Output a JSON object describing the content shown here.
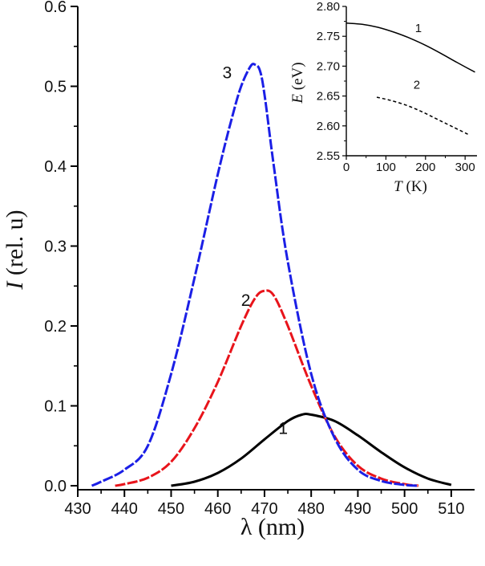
{
  "chart_data": [
    {
      "id": "main",
      "type": "line",
      "xlabel": {
        "symbol": "λ",
        "unit": " (nm)"
      },
      "ylabel": {
        "symbol": "I",
        "unit": " (rel. u)"
      },
      "xlim": [
        430,
        515
      ],
      "ylim": [
        -0.005,
        0.6
      ],
      "xticks": [
        430,
        440,
        450,
        460,
        470,
        480,
        490,
        500,
        510
      ],
      "yticks": [
        0.0,
        0.1,
        0.2,
        0.3,
        0.4,
        0.5,
        0.6
      ],
      "ytick_labels": [
        "0.0",
        "0.1",
        "0.2",
        "0.3",
        "0.4",
        "0.5",
        "0.6"
      ],
      "series": [
        {
          "name": "1",
          "color": "#000000",
          "style": "solid",
          "x": [
            450,
            455,
            460,
            465,
            470,
            475,
            478,
            480,
            485,
            490,
            495,
            500,
            505,
            510
          ],
          "y": [
            0.0,
            0.005,
            0.016,
            0.034,
            0.058,
            0.081,
            0.089,
            0.089,
            0.081,
            0.063,
            0.042,
            0.023,
            0.009,
            0.001
          ],
          "label_at": [
            474,
            0.065
          ]
        },
        {
          "name": "2",
          "color": "#e8141b",
          "style": "dashed",
          "x": [
            438,
            440,
            445,
            450,
            455,
            460,
            465,
            468,
            470,
            472,
            475,
            480,
            485,
            490,
            495,
            500,
            503
          ],
          "y": [
            0.0,
            0.002,
            0.01,
            0.03,
            0.072,
            0.13,
            0.2,
            0.235,
            0.244,
            0.238,
            0.2,
            0.125,
            0.062,
            0.025,
            0.009,
            0.002,
            0.0
          ],
          "label_at": [
            466,
            0.225
          ]
        },
        {
          "name": "3",
          "color": "#1b1fe6",
          "style": "dashed",
          "x": [
            433,
            435,
            440,
            445,
            450,
            455,
            460,
            463,
            465,
            467,
            468,
            469,
            470,
            472,
            475,
            480,
            485,
            490,
            495,
            500,
            503
          ],
          "y": [
            0.0,
            0.005,
            0.02,
            0.05,
            0.14,
            0.26,
            0.39,
            0.46,
            0.5,
            0.525,
            0.527,
            0.52,
            0.49,
            0.4,
            0.28,
            0.14,
            0.06,
            0.02,
            0.006,
            0.001,
            0.0
          ],
          "label_at": [
            462,
            0.51
          ]
        }
      ]
    },
    {
      "id": "inset",
      "type": "line",
      "xlabel": {
        "symbol": "T",
        "unit": " (K)"
      },
      "ylabel": {
        "symbol": "E",
        "unit": " (eV)"
      },
      "xlim": [
        0,
        330
      ],
      "ylim": [
        2.55,
        2.8
      ],
      "xticks": [
        0,
        100,
        200,
        300
      ],
      "yticks": [
        2.55,
        2.6,
        2.65,
        2.7,
        2.75,
        2.8
      ],
      "ytick_labels": [
        "2.55",
        "2.60",
        "2.65",
        "2.70",
        "2.75",
        "2.80"
      ],
      "series": [
        {
          "name": "1",
          "color": "#000000",
          "style": "solid",
          "x": [
            0,
            40,
            80,
            120,
            160,
            200,
            240,
            280,
            325
          ],
          "y": [
            2.772,
            2.77,
            2.765,
            2.757,
            2.747,
            2.735,
            2.721,
            2.706,
            2.69
          ],
          "label_at": [
            182,
            2.757
          ]
        },
        {
          "name": "2",
          "color": "#000000",
          "style": "dashed",
          "x": [
            77,
            110,
            150,
            190,
            230,
            270,
            310
          ],
          "y": [
            2.648,
            2.643,
            2.635,
            2.624,
            2.611,
            2.598,
            2.585
          ],
          "label_at": [
            178,
            2.662
          ]
        }
      ]
    }
  ]
}
